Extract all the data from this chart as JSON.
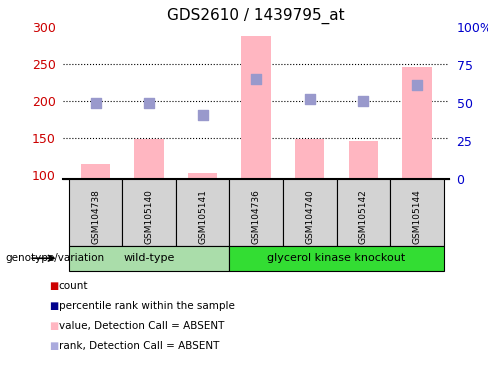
{
  "title": "GDS2610 / 1439795_at",
  "samples": [
    "GSM104738",
    "GSM105140",
    "GSM105141",
    "GSM104736",
    "GSM104740",
    "GSM105142",
    "GSM105144"
  ],
  "groups": [
    "wild-type",
    "wild-type",
    "wild-type",
    "glycerol kinase knockout",
    "glycerol kinase knockout",
    "glycerol kinase knockout",
    "glycerol kinase knockout"
  ],
  "bar_heights": [
    115,
    148,
    103,
    287,
    148,
    146,
    246
  ],
  "bar_color": "#ffb6c1",
  "dot_values": [
    197,
    197,
    181,
    230,
    203,
    200,
    222
  ],
  "dot_color": "#9999cc",
  "ylim_left": [
    95,
    300
  ],
  "ylim_right": [
    0,
    100
  ],
  "yticks_left": [
    100,
    150,
    200,
    250,
    300
  ],
  "yticks_right": [
    0,
    25,
    50,
    75,
    100
  ],
  "ylabel_left_color": "#cc0000",
  "ylabel_right_color": "#0000cc",
  "wildtype_color": "#aaddaa",
  "knockout_color": "#33dd33",
  "sample_box_color": "#d3d3d3",
  "legend_items": [
    {
      "label": "count",
      "color": "#cc0000"
    },
    {
      "label": "percentile rank within the sample",
      "color": "#00008b"
    },
    {
      "label": "value, Detection Call = ABSENT",
      "color": "#ffb6c1"
    },
    {
      "label": "rank, Detection Call = ABSENT",
      "color": "#aaaadd"
    }
  ],
  "bar_width": 0.55,
  "dot_size": 45,
  "figsize": [
    4.88,
    3.84
  ],
  "dpi": 100
}
